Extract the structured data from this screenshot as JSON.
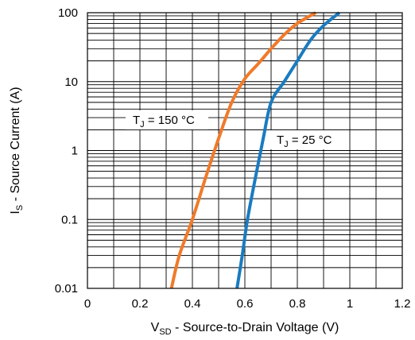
{
  "chart_data": {
    "type": "line",
    "xlabel": {
      "main": "V",
      "sub": "SD",
      "rest": " - Source-to-Drain Voltage (V)"
    },
    "ylabel": {
      "main": "I",
      "sub": "S",
      "rest": " - Source Current (A)"
    },
    "xlim": [
      0,
      1.2
    ],
    "ylim": [
      0.01,
      100
    ],
    "yscale": "log",
    "grid": true,
    "x_ticks": [
      "0",
      "0.2",
      "0.4",
      "0.6",
      "0.8",
      "1",
      "1.2"
    ],
    "y_ticks": [
      "0.01",
      "0.1",
      "1",
      "10",
      "100"
    ],
    "series": [
      {
        "color": "#f07a2a",
        "label": {
          "main": "T",
          "sub": "J",
          "rest": " = 150 °C"
        },
        "points": [
          [
            0.32,
            0.01
          ],
          [
            0.35,
            0.03
          ],
          [
            0.4,
            0.1
          ],
          [
            0.45,
            0.4
          ],
          [
            0.5,
            1.5
          ],
          [
            0.55,
            5
          ],
          [
            0.6,
            11
          ],
          [
            0.65,
            18
          ],
          [
            0.7,
            30
          ],
          [
            0.75,
            48
          ],
          [
            0.8,
            70
          ],
          [
            0.87,
            100
          ]
        ]
      },
      {
        "color": "#1a7bc0",
        "label": {
          "main": "T",
          "sub": "J",
          "rest": " = 25 °C"
        },
        "points": [
          [
            0.57,
            0.01
          ],
          [
            0.59,
            0.03
          ],
          [
            0.61,
            0.1
          ],
          [
            0.64,
            0.4
          ],
          [
            0.67,
            1.5
          ],
          [
            0.7,
            5
          ],
          [
            0.75,
            10
          ],
          [
            0.8,
            20
          ],
          [
            0.85,
            40
          ],
          [
            0.9,
            65
          ],
          [
            0.96,
            100
          ]
        ]
      }
    ]
  }
}
